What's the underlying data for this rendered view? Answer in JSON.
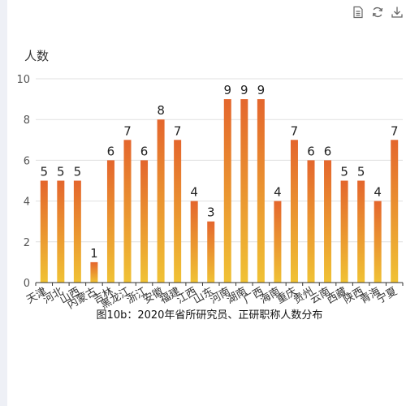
{
  "toolbox": {
    "items": [
      {
        "name": "data-view-icon"
      },
      {
        "name": "restore-icon"
      },
      {
        "name": "save-image-icon"
      }
    ],
    "icon_color": "#666666"
  },
  "chart_data": {
    "type": "bar",
    "caption": "图10b：2020年省所研究员、正研职称人数分布",
    "ylabel": "人数",
    "xlabel": "",
    "ylim": [
      0,
      10
    ],
    "yticks": [
      0,
      2,
      4,
      6,
      8,
      10
    ],
    "grid": true,
    "categories": [
      "天津",
      "河北",
      "山西",
      "内蒙古",
      "吉林",
      "黑龙江",
      "浙江",
      "安徽",
      "福建",
      "江西",
      "山东",
      "河南",
      "湖南",
      "广西",
      "海南",
      "重庆",
      "贵州",
      "云南",
      "西藏",
      "陕西",
      "青海",
      "宁夏"
    ],
    "values": [
      5,
      5,
      5,
      1,
      6,
      7,
      6,
      8,
      7,
      4,
      3,
      9,
      9,
      9,
      4,
      7,
      6,
      6,
      5,
      5,
      4,
      7
    ],
    "bar_gradient": {
      "top": "#e4662d",
      "bottom": "#f0c234"
    },
    "grid_color": "#e0e0e0",
    "axis_color": "#333333"
  }
}
